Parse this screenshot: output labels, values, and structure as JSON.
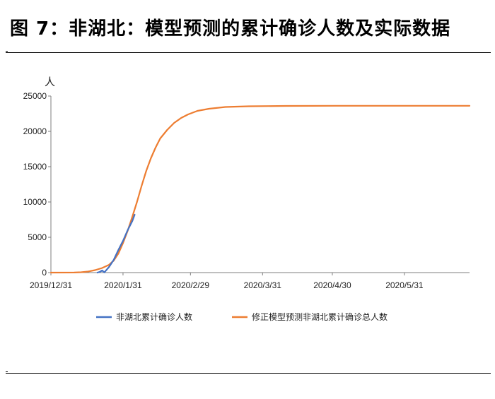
{
  "figure": {
    "title": "图 7：非湖北：模型预测的累计确诊人数及实际数据"
  },
  "chart_data": {
    "type": "line",
    "title": "图 7：非湖北：模型预测的累计确诊人数及实际数据",
    "ylabel": "人",
    "xlabel": "",
    "x_range": [
      "2019-12-31",
      "2020-06-28"
    ],
    "ylim": [
      0,
      25000
    ],
    "y_ticks": [
      0,
      5000,
      10000,
      15000,
      20000,
      25000
    ],
    "x_tick_labels": [
      "2019/12/31",
      "2020/1/31",
      "2020/2/29",
      "2020/3/31",
      "2020/4/30",
      "2020/5/31"
    ],
    "grid": false,
    "legend_position": "bottom",
    "colors": {
      "actual": "#4472C4",
      "model": "#ED7D31"
    },
    "series": [
      {
        "name": "非湖北累计确诊人数",
        "points": [
          [
            "2020-01-20",
            0
          ],
          [
            "2020-01-21",
            100
          ],
          [
            "2020-01-22",
            300
          ],
          [
            "2020-01-23",
            30
          ],
          [
            "2020-01-25",
            800
          ],
          [
            "2020-01-27",
            1800
          ],
          [
            "2020-01-29",
            3200
          ],
          [
            "2020-01-31",
            4500
          ],
          [
            "2020-02-02",
            6000
          ],
          [
            "2020-02-04",
            7300
          ],
          [
            "2020-02-05",
            8200
          ]
        ]
      },
      {
        "name": "修正模型预测非湖北累计确诊总人数",
        "points": [
          [
            "2019-12-31",
            0
          ],
          [
            "2020-01-10",
            5
          ],
          [
            "2020-01-13",
            50
          ],
          [
            "2020-01-16",
            150
          ],
          [
            "2020-01-19",
            350
          ],
          [
            "2020-01-22",
            650
          ],
          [
            "2020-01-25",
            1100
          ],
          [
            "2020-01-27",
            1700
          ],
          [
            "2020-01-29",
            2700
          ],
          [
            "2020-01-31",
            4200
          ],
          [
            "2020-02-02",
            5900
          ],
          [
            "2020-02-04",
            7900
          ],
          [
            "2020-02-06",
            10000
          ],
          [
            "2020-02-08",
            12300
          ],
          [
            "2020-02-10",
            14400
          ],
          [
            "2020-02-12",
            16200
          ],
          [
            "2020-02-14",
            17700
          ],
          [
            "2020-02-16",
            19000
          ],
          [
            "2020-02-19",
            20200
          ],
          [
            "2020-02-22",
            21200
          ],
          [
            "2020-02-25",
            21900
          ],
          [
            "2020-02-28",
            22400
          ],
          [
            "2020-03-03",
            22900
          ],
          [
            "2020-03-08",
            23200
          ],
          [
            "2020-03-15",
            23450
          ],
          [
            "2020-03-25",
            23550
          ],
          [
            "2020-04-10",
            23600
          ],
          [
            "2020-05-01",
            23620
          ],
          [
            "2020-06-28",
            23620
          ]
        ]
      }
    ]
  }
}
